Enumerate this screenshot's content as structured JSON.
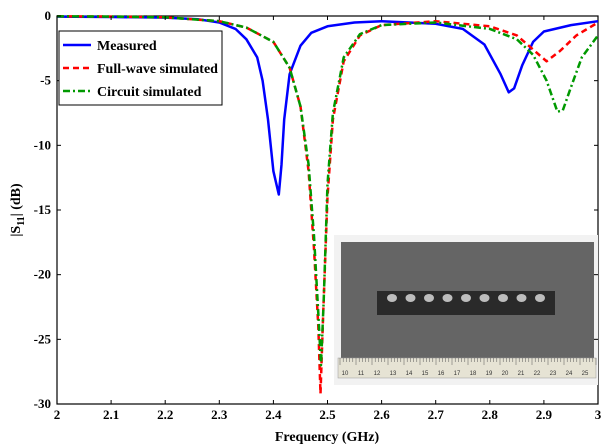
{
  "chart_data": {
    "type": "line",
    "xlabel": "Frequency (GHz)",
    "ylabel_main": "|S",
    "ylabel_sub": "11",
    "ylabel_tail": "| (dB)",
    "xlim": [
      2,
      3
    ],
    "ylim": [
      -30,
      0
    ],
    "x_ticks": [
      "2",
      "2.1",
      "2.2",
      "2.3",
      "2.4",
      "2.5",
      "2.6",
      "2.7",
      "2.8",
      "2.9",
      "3"
    ],
    "y_ticks": [
      "0",
      "-5",
      "-10",
      "-15",
      "-20",
      "-25",
      "-30"
    ],
    "grid": false,
    "legend_position": "top-left",
    "series": [
      {
        "name": "Measured",
        "color": "#0000ff",
        "dash": "solid",
        "points": [
          [
            2.0,
            -0.05
          ],
          [
            2.1,
            -0.08
          ],
          [
            2.2,
            -0.12
          ],
          [
            2.26,
            -0.25
          ],
          [
            2.3,
            -0.5
          ],
          [
            2.33,
            -1.0
          ],
          [
            2.35,
            -1.8
          ],
          [
            2.37,
            -3.2
          ],
          [
            2.38,
            -5.0
          ],
          [
            2.39,
            -8.0
          ],
          [
            2.4,
            -12.0
          ],
          [
            2.41,
            -13.8
          ],
          [
            2.415,
            -11.5
          ],
          [
            2.42,
            -8.0
          ],
          [
            2.43,
            -4.5
          ],
          [
            2.45,
            -2.3
          ],
          [
            2.47,
            -1.3
          ],
          [
            2.5,
            -0.8
          ],
          [
            2.55,
            -0.5
          ],
          [
            2.6,
            -0.4
          ],
          [
            2.7,
            -0.6
          ],
          [
            2.75,
            -1.0
          ],
          [
            2.79,
            -2.2
          ],
          [
            2.82,
            -4.5
          ],
          [
            2.835,
            -5.9
          ],
          [
            2.845,
            -5.6
          ],
          [
            2.86,
            -3.8
          ],
          [
            2.88,
            -2.0
          ],
          [
            2.9,
            -1.2
          ],
          [
            2.95,
            -0.7
          ],
          [
            3.0,
            -0.4
          ]
        ]
      },
      {
        "name": "Full-wave simulated",
        "color": "#ff0000",
        "dash": "dashed",
        "points": [
          [
            2.0,
            -0.02
          ],
          [
            2.1,
            -0.05
          ],
          [
            2.2,
            -0.1
          ],
          [
            2.3,
            -0.4
          ],
          [
            2.35,
            -0.9
          ],
          [
            2.4,
            -2.0
          ],
          [
            2.43,
            -4.0
          ],
          [
            2.45,
            -7.0
          ],
          [
            2.465,
            -12.0
          ],
          [
            2.475,
            -18.0
          ],
          [
            2.483,
            -24.0
          ],
          [
            2.487,
            -29.2
          ],
          [
            2.492,
            -23.0
          ],
          [
            2.5,
            -14.0
          ],
          [
            2.51,
            -8.0
          ],
          [
            2.53,
            -3.5
          ],
          [
            2.56,
            -1.5
          ],
          [
            2.6,
            -0.7
          ],
          [
            2.7,
            -0.4
          ],
          [
            2.8,
            -0.8
          ],
          [
            2.85,
            -1.5
          ],
          [
            2.88,
            -2.6
          ],
          [
            2.905,
            -3.5
          ],
          [
            2.93,
            -2.7
          ],
          [
            2.96,
            -1.5
          ],
          [
            3.0,
            -0.5
          ]
        ]
      },
      {
        "name": "Circuit simulated",
        "color": "#009900",
        "dash": "dashdot",
        "points": [
          [
            2.0,
            -0.02
          ],
          [
            2.1,
            -0.05
          ],
          [
            2.2,
            -0.1
          ],
          [
            2.3,
            -0.4
          ],
          [
            2.35,
            -0.9
          ],
          [
            2.4,
            -2.0
          ],
          [
            2.43,
            -4.0
          ],
          [
            2.45,
            -7.0
          ],
          [
            2.465,
            -11.5
          ],
          [
            2.475,
            -17.0
          ],
          [
            2.483,
            -23.0
          ],
          [
            2.488,
            -27.0
          ],
          [
            2.493,
            -22.0
          ],
          [
            2.5,
            -13.0
          ],
          [
            2.51,
            -7.5
          ],
          [
            2.53,
            -3.2
          ],
          [
            2.56,
            -1.4
          ],
          [
            2.6,
            -0.7
          ],
          [
            2.7,
            -0.5
          ],
          [
            2.8,
            -1.0
          ],
          [
            2.85,
            -1.8
          ],
          [
            2.88,
            -3.0
          ],
          [
            2.905,
            -5.0
          ],
          [
            2.925,
            -7.4
          ],
          [
            2.935,
            -7.3
          ],
          [
            2.95,
            -5.5
          ],
          [
            2.97,
            -3.2
          ],
          [
            3.0,
            -1.5
          ]
        ]
      }
    ]
  },
  "inset": {
    "ruler_numbers": [
      "10",
      "11",
      "12",
      "13",
      "14",
      "15",
      "16",
      "17",
      "18",
      "19",
      "20",
      "21",
      "22",
      "23",
      "24",
      "25"
    ]
  }
}
